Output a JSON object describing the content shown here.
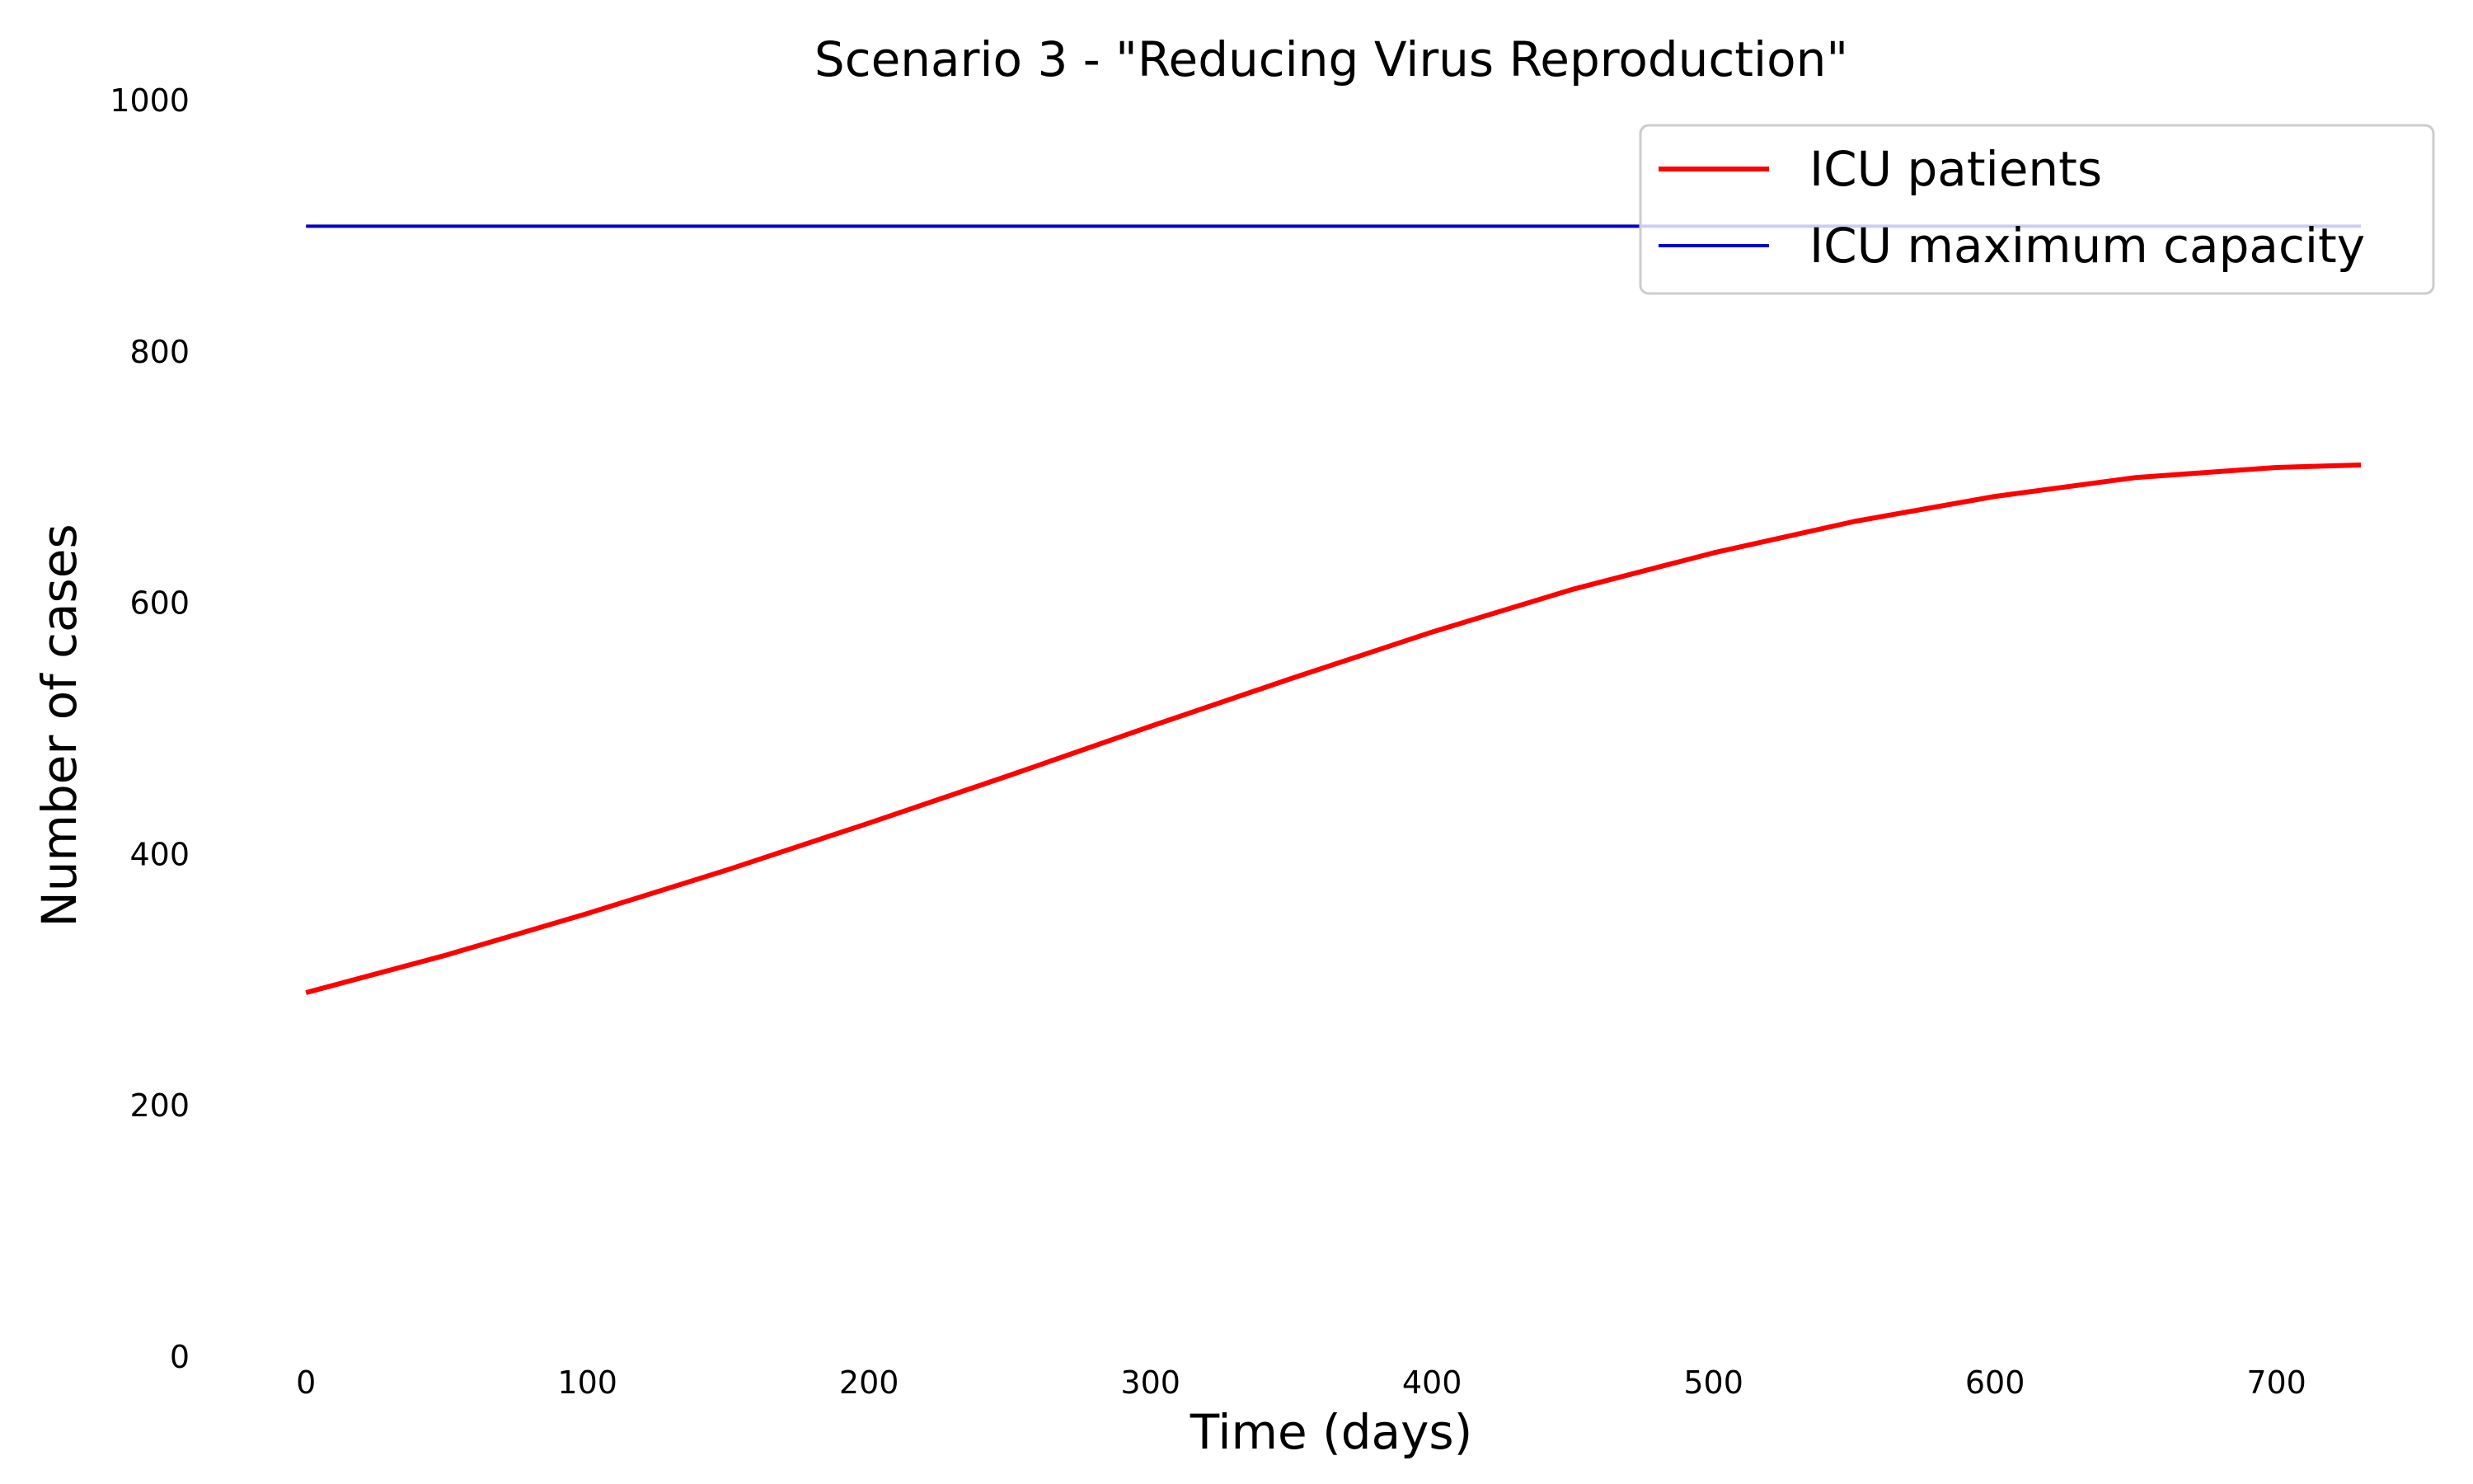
{
  "chart_data": {
    "type": "line",
    "title": "Scenario 3 - \"Reducing Virus Reproduction\"",
    "xlabel": "Time (days)",
    "ylabel": "Number of cases",
    "xlim": [
      -90,
      760
    ],
    "ylim": [
      0,
      1000
    ],
    "grid": false,
    "legend_position": "top-right",
    "x_ticks": [
      0,
      100,
      200,
      300,
      400,
      500,
      600,
      700
    ],
    "y_ticks": [
      0,
      200,
      400,
      600,
      800,
      1000
    ],
    "series": [
      {
        "name": "ICU patients",
        "color": "#ff0000",
        "x": [
          0,
          50,
          100,
          150,
          200,
          250,
          300,
          350,
          400,
          450,
          500,
          550,
          600,
          650,
          700,
          730
        ],
        "y": [
          290,
          320,
          353,
          388,
          425,
          463,
          502,
          540,
          577,
          611,
          640,
          665,
          685,
          700,
          708,
          710
        ]
      },
      {
        "name": "ICU maximum capacity",
        "color": "#0000cc",
        "x": [
          0,
          730
        ],
        "y": [
          900,
          900
        ]
      }
    ]
  }
}
